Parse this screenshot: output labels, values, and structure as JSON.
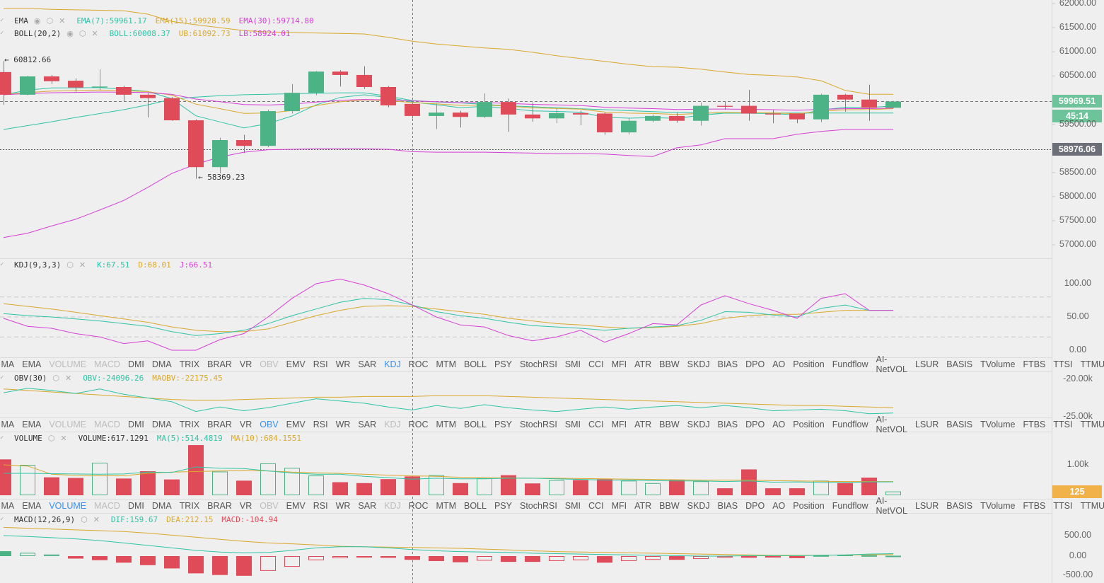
{
  "colors": {
    "up": "#4cb386",
    "down": "#e04b5a",
    "teal": "#2ec4a6",
    "orange": "#d9a92c",
    "magenta": "#d63fd6",
    "active": "#3a8ff0",
    "price_tag": "#6ec49a",
    "marker_tag": "#6c6e78",
    "volume_tag": "#f2b24a"
  },
  "main": {
    "legends": [
      {
        "name": "EMA",
        "icons": [
          "eye-icon",
          "gear-icon",
          "close-icon"
        ],
        "values": [
          {
            "text": "EMA(7):59961.17",
            "color": "teal"
          },
          {
            "text": "EMA(15):59928.59",
            "color": "orange"
          },
          {
            "text": "EMA(30):59714.80",
            "color": "magenta"
          }
        ]
      },
      {
        "name": "BOLL(20,2)",
        "icons": [
          "eye-icon",
          "gear-icon",
          "close-icon"
        ],
        "values": [
          {
            "text": "BOLL:60008.37",
            "color": "teal"
          },
          {
            "text": "UB:61092.73",
            "color": "orange"
          },
          {
            "text": "LB:58924.01",
            "color": "magenta"
          }
        ]
      }
    ],
    "axis_ticks": [
      "62000.00",
      "61500.00",
      "61000.00",
      "60500.00",
      "59500.00",
      "58500.00",
      "58000.00",
      "57500.00",
      "57000.00"
    ],
    "last_price": "59969.51",
    "countdown": "45:14",
    "marker_price": "58976.06",
    "high_annotation": "← 60812.66",
    "low_annotation": "← 58369.23"
  },
  "chart_data": {
    "type": "candlestick",
    "ohlc": [
      [
        60580,
        60110,
        60810,
        59900
      ],
      [
        60110,
        60490,
        60500,
        60100
      ],
      [
        60490,
        60390,
        60520,
        60330
      ],
      [
        60400,
        60260,
        60450,
        60170
      ],
      [
        60260,
        60280,
        60640,
        60200
      ],
      [
        60270,
        60110,
        60300,
        59970
      ],
      [
        60110,
        60040,
        60140,
        59640
      ],
      [
        60040,
        59580,
        60060,
        59570
      ],
      [
        59580,
        58610,
        59600,
        58369.23
      ],
      [
        58610,
        59170,
        59220,
        58480
      ],
      [
        59170,
        59050,
        59280,
        58900
      ],
      [
        59050,
        59770,
        59800,
        59020
      ],
      [
        59770,
        60150,
        60330,
        59720
      ],
      [
        60150,
        60590,
        60600,
        60100
      ],
      [
        60590,
        60520,
        60620,
        60280
      ],
      [
        60520,
        60270,
        60700,
        60230
      ],
      [
        60270,
        59890,
        60290,
        59850
      ],
      [
        59920,
        59670,
        59940,
        59620
      ],
      [
        59670,
        59740,
        59920,
        59400
      ],
      [
        59740,
        59650,
        59780,
        59430
      ],
      [
        59650,
        59960,
        60140,
        59630
      ],
      [
        59960,
        59700,
        60030,
        59340
      ],
      [
        59700,
        59620,
        59950,
        59550
      ],
      [
        59620,
        59730,
        59830,
        59520
      ],
      [
        59730,
        59700,
        59780,
        59480
      ],
      [
        59720,
        59330,
        59740,
        59280
      ],
      [
        59330,
        59570,
        59620,
        59290
      ],
      [
        59570,
        59670,
        59700,
        59540
      ],
      [
        59670,
        59570,
        59740,
        59530
      ],
      [
        59570,
        59880,
        59950,
        59470
      ],
      [
        59880,
        59860,
        59960,
        59800
      ],
      [
        59880,
        59720,
        60210,
        59570
      ],
      [
        59720,
        59700,
        59790,
        59520
      ],
      [
        59720,
        59600,
        59680,
        59520
      ],
      [
        59600,
        60110,
        60130,
        59540
      ],
      [
        60110,
        60010,
        60130,
        59760
      ],
      [
        60010,
        59840,
        60320,
        59570
      ],
      [
        59840,
        59969.51,
        59980,
        59830
      ]
    ],
    "boll_ub": [
      61900,
      61900,
      61880,
      61870,
      61860,
      61850,
      61780,
      61630,
      61560,
      61500,
      61440,
      61410,
      61400,
      61390,
      61380,
      61370,
      61300,
      61220,
      61160,
      61120,
      61080,
      61050,
      60990,
      60920,
      60860,
      60800,
      60740,
      60690,
      60680,
      60640,
      60580,
      60530,
      60510,
      60480,
      60400,
      60200,
      60120,
      60120
    ],
    "boll_mid": [
      59390,
      59470,
      59550,
      59640,
      59720,
      59800,
      59900,
      60020,
      60060,
      60090,
      60110,
      60120,
      60130,
      60140,
      60150,
      60150,
      60080,
      59990,
      59960,
      59940,
      59910,
      59880,
      59860,
      59840,
      59820,
      59800,
      59780,
      59760,
      59740,
      59730,
      59730,
      59730,
      59730,
      59730,
      59730,
      59730,
      59730,
      59730
    ],
    "boll_lb": [
      57150,
      57240,
      57390,
      57530,
      57720,
      57920,
      58190,
      58480,
      58670,
      58820,
      58920,
      58970,
      58980,
      58990,
      58990,
      58990,
      58980,
      58930,
      58920,
      58920,
      58920,
      58910,
      58900,
      58890,
      58890,
      58880,
      58850,
      58830,
      59010,
      59070,
      59200,
      59200,
      59200,
      59290,
      59350,
      59390,
      59390,
      59390
    ],
    "ylim": [
      57000,
      62000
    ],
    "kdj": {
      "k": [
        55,
        52,
        50,
        47,
        44,
        40,
        36,
        28,
        22,
        25,
        30,
        40,
        52,
        62,
        72,
        78,
        76,
        68,
        58,
        52,
        48,
        42,
        37,
        35,
        33,
        30,
        33,
        35,
        37,
        45,
        58,
        57,
        53,
        50,
        63,
        68,
        60,
        60
      ],
      "d": [
        70,
        66,
        62,
        57,
        52,
        47,
        42,
        35,
        30,
        28,
        28,
        32,
        42,
        52,
        60,
        66,
        67,
        66,
        62,
        58,
        54,
        48,
        44,
        40,
        38,
        35,
        33,
        34,
        36,
        40,
        48,
        52,
        54,
        54,
        57,
        60,
        60,
        60
      ],
      "j": [
        48,
        36,
        33,
        25,
        20,
        10,
        14,
        0,
        0,
        16,
        25,
        50,
        78,
        100,
        107,
        98,
        85,
        68,
        50,
        38,
        35,
        22,
        14,
        20,
        30,
        12,
        25,
        40,
        38,
        68,
        82,
        70,
        60,
        48,
        78,
        85,
        60,
        60
      ]
    },
    "obv": [
      -21800,
      -21200,
      -21500,
      -21900,
      -21300,
      -22000,
      -22500,
      -23000,
      -24300,
      -23700,
      -24200,
      -23800,
      -23200,
      -22600,
      -22900,
      -23200,
      -23700,
      -24100,
      -23500,
      -23900,
      -23400,
      -23800,
      -24100,
      -24300,
      -24000,
      -23700,
      -24000,
      -23700,
      -23500,
      -23800,
      -23500,
      -23800,
      -24200,
      -24100,
      -24000,
      -24200,
      -24600,
      -24500
    ],
    "maobv": [
      -21300,
      -21500,
      -21700,
      -21900,
      -22100,
      -22300,
      -22500,
      -22700,
      -22800,
      -22800,
      -22700,
      -22600,
      -22500,
      -22400,
      -22400,
      -22300,
      -22300,
      -22300,
      -22200,
      -22200,
      -22200,
      -22300,
      -22400,
      -22500,
      -22600,
      -22700,
      -22800,
      -22900,
      -23000,
      -23100,
      -23200,
      -23300,
      -23400,
      -23500,
      -23500,
      -23600,
      -23700,
      -23800
    ],
    "volume": [
      1180,
      1000,
      590,
      570,
      1070,
      550,
      790,
      520,
      1650,
      780,
      480,
      1050,
      900,
      650,
      430,
      400,
      530,
      620,
      660,
      400,
      560,
      660,
      390,
      500,
      500,
      530,
      480,
      400,
      510,
      460,
      230,
      850,
      230,
      230,
      480,
      400,
      580,
      125
    ],
    "vol_ma5": [
      720,
      720,
      710,
      700,
      690,
      700,
      760,
      750,
      930,
      890,
      880,
      800,
      730,
      690,
      690,
      620,
      580,
      530,
      560,
      540,
      540,
      560,
      560,
      540,
      520,
      500,
      500,
      480,
      470,
      470,
      450,
      470,
      430,
      440,
      420,
      420,
      440,
      440
    ],
    "vol_ma10": [
      1000,
      960,
      690,
      650,
      640,
      640,
      720,
      760,
      780,
      800,
      820,
      800,
      760,
      740,
      720,
      690,
      660,
      640,
      620,
      590,
      580,
      570,
      560,
      560,
      550,
      540,
      530,
      520,
      510,
      500,
      500,
      500,
      480,
      470,
      460,
      450,
      450,
      450
    ],
    "macd_hist": [
      120,
      80,
      40,
      -60,
      -100,
      -160,
      -220,
      -300,
      -420,
      -460,
      -480,
      -360,
      -260,
      -100,
      -50,
      -30,
      -40,
      -90,
      -120,
      -150,
      -110,
      -140,
      -140,
      -120,
      -100,
      -160,
      -120,
      -90,
      -90,
      -70,
      -30,
      -40,
      -30,
      -50,
      20,
      30,
      20,
      10
    ],
    "dif": [
      500,
      480,
      450,
      420,
      380,
      320,
      260,
      200,
      140,
      100,
      80,
      90,
      140,
      200,
      230,
      230,
      200,
      160,
      130,
      110,
      100,
      90,
      70,
      60,
      50,
      40,
      30,
      20,
      10,
      0,
      0,
      10,
      10,
      10,
      20,
      30,
      50,
      60
    ],
    "dea": [
      700,
      680,
      660,
      640,
      620,
      600,
      560,
      510,
      460,
      410,
      360,
      320,
      300,
      270,
      240,
      230,
      220,
      210,
      200,
      190,
      170,
      150,
      130,
      110,
      100,
      90,
      80,
      70,
      60,
      50,
      40,
      30,
      20,
      20,
      20,
      25,
      35,
      40
    ]
  },
  "kdj_pane": {
    "legend": {
      "name": "KDJ(9,3,3)",
      "icons": [
        "gear-icon",
        "close-icon"
      ],
      "values": [
        {
          "text": "K:67.51",
          "color": "teal"
        },
        {
          "text": "D:68.01",
          "color": "orange"
        },
        {
          "text": "J:66.51",
          "color": "magenta"
        }
      ]
    },
    "axis_ticks": [
      "100.00",
      "50.00",
      "0.00"
    ]
  },
  "obv_pane": {
    "legend": {
      "name": "OBV(30)",
      "icons": [
        "gear-icon",
        "close-icon"
      ],
      "values": [
        {
          "text": "OBV:-24096.26",
          "color": "teal"
        },
        {
          "text": "MAOBV:-22175.45",
          "color": "orange"
        }
      ]
    },
    "axis_ticks": [
      "-20.00k",
      "-25.00k"
    ]
  },
  "volume_pane": {
    "legend": {
      "name": "VOLUME",
      "icons": [
        "gear-icon",
        "close-icon"
      ],
      "values": [
        {
          "text": "VOLUME:617.1291",
          "color": "dark"
        },
        {
          "text": "MA(5):514.4819",
          "color": "teal"
        },
        {
          "text": "MA(10):684.1551",
          "color": "orange"
        }
      ]
    },
    "axis_ticks": [
      "1.00k"
    ],
    "last_volume": "125"
  },
  "macd_pane": {
    "legend": {
      "name": "MACD(12,26,9)",
      "icons": [
        "gear-icon",
        "close-icon"
      ],
      "values": [
        {
          "text": "DIF:159.67",
          "color": "teal"
        },
        {
          "text": "DEA:212.15",
          "color": "orange"
        },
        {
          "text": "MACD:-104.94",
          "color": "down"
        }
      ]
    },
    "axis_ticks": [
      "500.00",
      "0.00",
      "-500.00"
    ]
  },
  "indicator_tabs": [
    "MA",
    "EMA",
    "VOLUME",
    "MACD",
    "DMI",
    "DMA",
    "TRIX",
    "BRAR",
    "VR",
    "OBV",
    "EMV",
    "RSI",
    "WR",
    "SAR",
    "KDJ",
    "ROC",
    "MTM",
    "BOLL",
    "PSY",
    "StochRSI",
    "SMI",
    "CCI",
    "MFI",
    "ATR",
    "BBW",
    "SKDJ",
    "BIAS",
    "DPO",
    "AO",
    "Position",
    "Fundflow",
    "AI-NetVOL",
    "LSUR",
    "BASIS",
    "TVolume",
    "FTBS",
    "TTSI",
    "TTMU"
  ],
  "tab_rows": [
    {
      "active": "KDJ",
      "disabled": [
        "VOLUME",
        "MACD",
        "OBV"
      ]
    },
    {
      "active": "OBV",
      "disabled": [
        "VOLUME",
        "MACD",
        "KDJ"
      ]
    },
    {
      "active": "VOLUME",
      "disabled": [
        "MACD",
        "OBV",
        "KDJ"
      ]
    }
  ]
}
